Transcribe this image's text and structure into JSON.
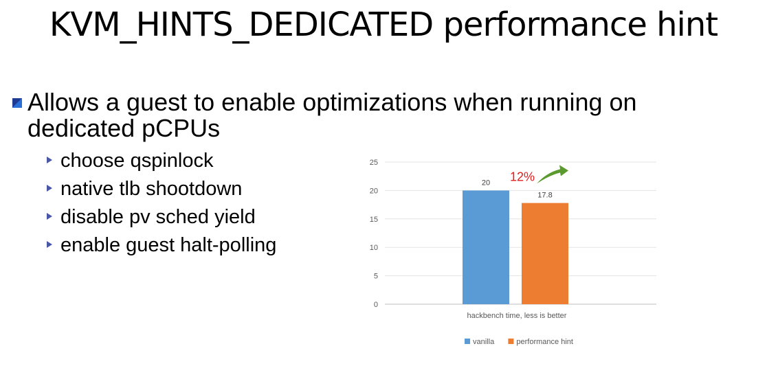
{
  "slide": {
    "title": "KVM_HINTS_DEDICATED performance hint",
    "main_bullet": "Allows a guest to enable optimizations when running on dedicated pCPUs",
    "main_bullet_line1": "Allows a guest to enable optimizations when running on",
    "main_bullet_line2": "dedicated pCPUs",
    "sub_bullets": [
      "choose qspinlock",
      "native tlb shootdown",
      "disable pv sched yield",
      "enable guest halt-polling"
    ]
  },
  "chart_data": {
    "type": "bar",
    "categories": [
      "hackbench time, less is better"
    ],
    "series": [
      {
        "name": "vanilla",
        "values": [
          20
        ],
        "color": "#5b9bd5"
      },
      {
        "name": "performance hint",
        "values": [
          17.8
        ],
        "color": "#ed7d31"
      }
    ],
    "xlabel": "hackbench time, less is better",
    "ylim": [
      0,
      25
    ],
    "yticks": [
      0,
      5,
      10,
      15,
      20,
      25
    ],
    "data_labels": [
      "20",
      "17.8"
    ],
    "grid": true,
    "legend": "bottom",
    "annotation": {
      "text": "12%",
      "color": "#e31c1c",
      "arrow_color": "#5a9a2f"
    }
  }
}
